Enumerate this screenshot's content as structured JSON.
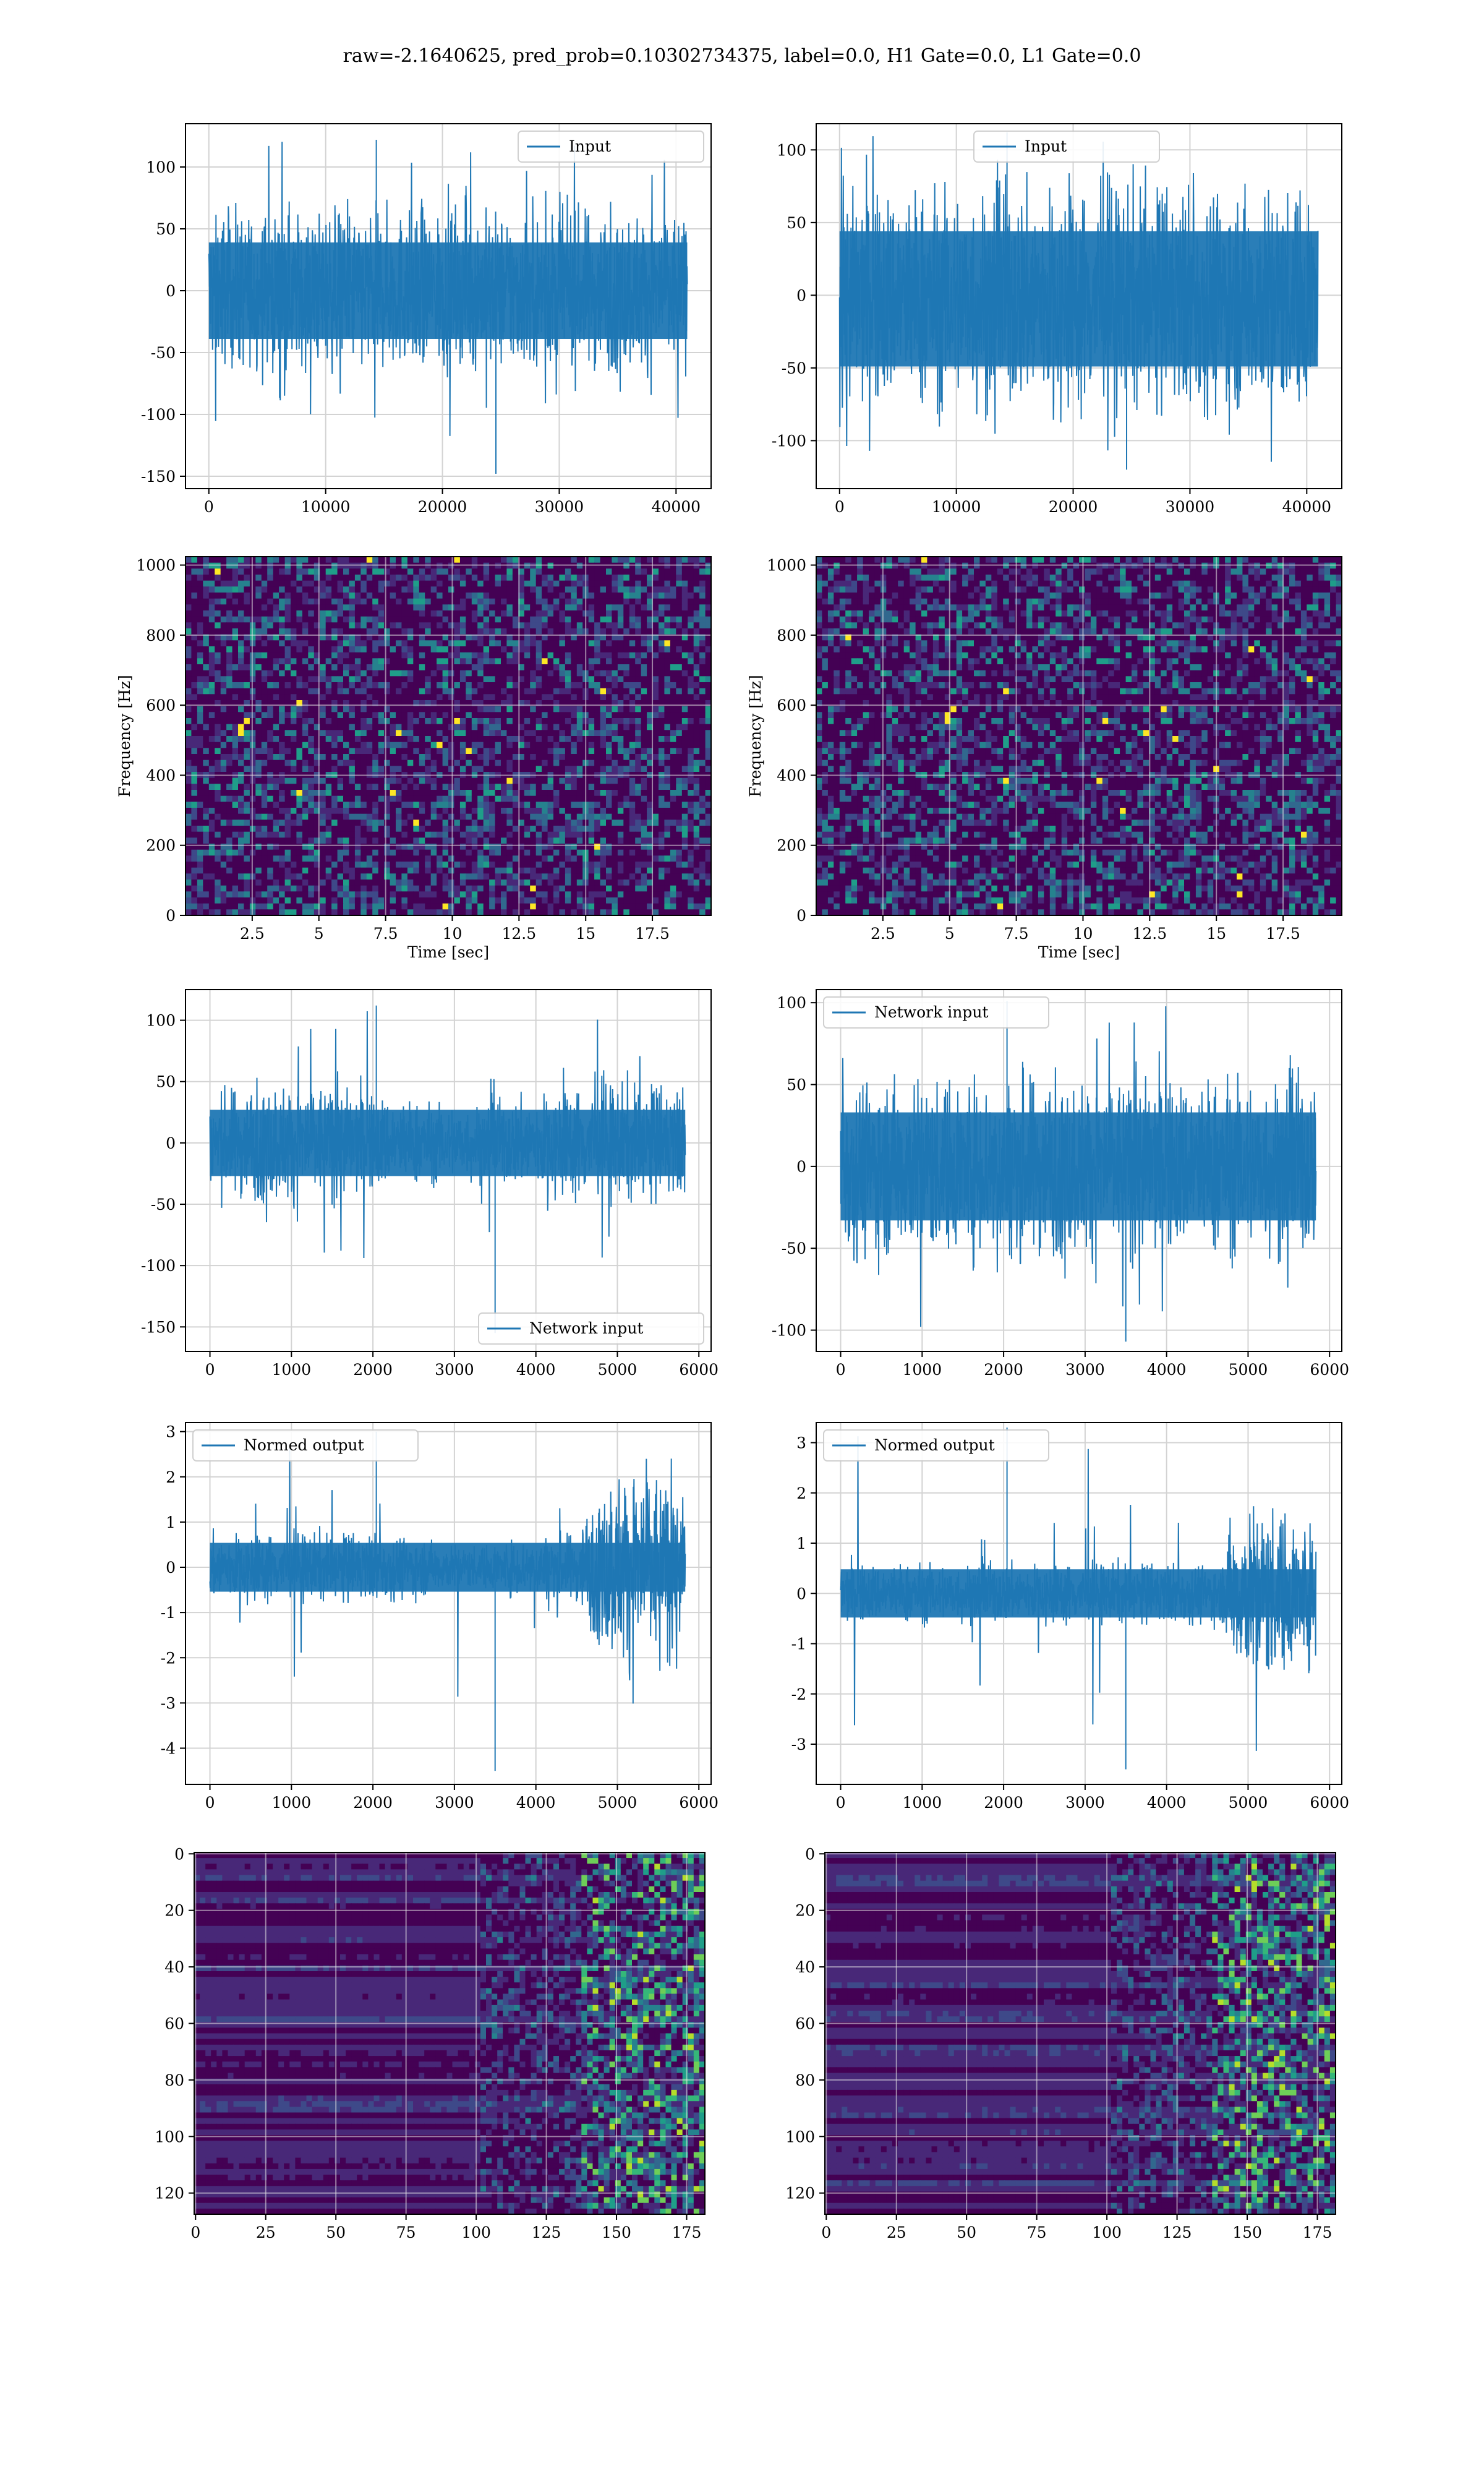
{
  "figure": {
    "title": "raw=-2.1640625, pred_prob=0.10302734375, label=0.0, H1 Gate=0.0, L1 Gate=0.0"
  },
  "colors": {
    "line": "#1f77b4",
    "grid": "#d3d3d3",
    "viridis": [
      "#440154",
      "#482878",
      "#3e4989",
      "#31688e",
      "#26828e",
      "#1f9e89",
      "#35b779",
      "#6ece58",
      "#b5de2b",
      "#fde725"
    ]
  },
  "chart_data": [
    {
      "id": "r1-left",
      "type": "line",
      "xlim": [
        -2000,
        43000
      ],
      "ylim": [
        -160,
        135
      ],
      "x_ticks": [
        0,
        10000,
        20000,
        30000,
        40000
      ],
      "y_ticks": [
        -150,
        -100,
        -50,
        0,
        50,
        100
      ],
      "legend": {
        "loc": "top-right",
        "label": "Input"
      },
      "grid": true,
      "series": {
        "name": "Input",
        "x_range": [
          0,
          40960
        ],
        "typical_band": [
          -65,
          65
        ],
        "min": -148,
        "max": 122
      }
    },
    {
      "id": "r1-right",
      "type": "line",
      "xlim": [
        -2000,
        43000
      ],
      "ylim": [
        -133,
        118
      ],
      "x_ticks": [
        0,
        10000,
        20000,
        30000,
        40000
      ],
      "y_ticks": [
        -100,
        -50,
        0,
        50,
        100
      ],
      "legend": {
        "loc": "top-center",
        "label": "Input"
      },
      "grid": true,
      "series": {
        "name": "Input",
        "x_range": [
          0,
          40960
        ],
        "typical_band": [
          -80,
          75
        ],
        "min": -120,
        "max": 112
      }
    },
    {
      "id": "r2-left",
      "type": "heatmap",
      "xlim": [
        0,
        19.7
      ],
      "ylim": [
        0,
        1024
      ],
      "x_ticks": [
        2.5,
        5.0,
        7.5,
        10.0,
        12.5,
        15.0,
        17.5
      ],
      "y_ticks": [
        0,
        200,
        400,
        600,
        800,
        1000
      ],
      "xlabel": "Time [sec]",
      "ylabel": "Frequency [Hz]",
      "grid": true,
      "colormap": "viridis"
    },
    {
      "id": "r2-right",
      "type": "heatmap",
      "xlim": [
        0,
        19.7
      ],
      "ylim": [
        0,
        1024
      ],
      "x_ticks": [
        2.5,
        5.0,
        7.5,
        10.0,
        12.5,
        15.0,
        17.5
      ],
      "y_ticks": [
        0,
        200,
        400,
        600,
        800,
        1000
      ],
      "xlabel": "Time [sec]",
      "ylabel": "Frequency [Hz]",
      "grid": true,
      "colormap": "viridis"
    },
    {
      "id": "r3-left",
      "type": "line",
      "xlim": [
        -300,
        6150
      ],
      "ylim": [
        -170,
        125
      ],
      "x_ticks": [
        0,
        1000,
        2000,
        3000,
        4000,
        5000,
        6000
      ],
      "y_ticks": [
        -150,
        -100,
        -50,
        0,
        50,
        100
      ],
      "legend": {
        "loc": "bottom-right",
        "label": "Network input"
      },
      "grid": true,
      "series": {
        "name": "Network input",
        "x_range": [
          0,
          5833
        ],
        "typical_band": [
          -45,
          45
        ],
        "min": -155,
        "max": 112
      }
    },
    {
      "id": "r3-right",
      "type": "line",
      "xlim": [
        -300,
        6150
      ],
      "ylim": [
        -113,
        108
      ],
      "x_ticks": [
        0,
        1000,
        2000,
        3000,
        4000,
        5000,
        6000
      ],
      "y_ticks": [
        -100,
        -50,
        0,
        50,
        100
      ],
      "legend": {
        "loc": "top-left",
        "label": "Network input"
      },
      "grid": true,
      "series": {
        "name": "Network input",
        "x_range": [
          0,
          5833
        ],
        "typical_band": [
          -55,
          55
        ],
        "min": -107,
        "max": 101
      }
    },
    {
      "id": "r4-left",
      "type": "line",
      "xlim": [
        -300,
        6150
      ],
      "ylim": [
        -4.8,
        3.2
      ],
      "x_ticks": [
        0,
        1000,
        2000,
        3000,
        4000,
        5000,
        6000
      ],
      "y_ticks": [
        -4,
        -3,
        -2,
        -1,
        0,
        1,
        2,
        3
      ],
      "legend": {
        "loc": "top-left",
        "label": "Normed output"
      },
      "grid": true,
      "series": {
        "name": "Normed output",
        "x_range": [
          0,
          5833
        ],
        "typical_band": [
          -0.9,
          0.9
        ],
        "min": -4.5,
        "max": 3.0
      }
    },
    {
      "id": "r4-right",
      "type": "line",
      "xlim": [
        -300,
        6150
      ],
      "ylim": [
        -3.8,
        3.4
      ],
      "x_ticks": [
        0,
        1000,
        2000,
        3000,
        4000,
        5000,
        6000
      ],
      "y_ticks": [
        -3,
        -2,
        -1,
        0,
        1,
        2,
        3
      ],
      "legend": {
        "loc": "top-left",
        "label": "Normed output"
      },
      "grid": true,
      "series": {
        "name": "Normed output",
        "x_range": [
          0,
          5833
        ],
        "typical_band": [
          -0.8,
          0.8
        ],
        "min": -3.5,
        "max": 3.3
      }
    },
    {
      "id": "r5-left",
      "type": "heatmap",
      "xlim": [
        -0.5,
        181.5
      ],
      "ylim": [
        127.5,
        -0.5
      ],
      "x_ticks": [
        0,
        25,
        50,
        75,
        100,
        125,
        150,
        175
      ],
      "y_ticks": [
        0,
        20,
        40,
        60,
        80,
        100,
        120
      ],
      "grid": true,
      "colormap": "viridis",
      "shape": [
        128,
        182
      ]
    },
    {
      "id": "r5-right",
      "type": "heatmap",
      "xlim": [
        -0.5,
        181.5
      ],
      "ylim": [
        127.5,
        -0.5
      ],
      "x_ticks": [
        0,
        25,
        50,
        75,
        100,
        125,
        150,
        175
      ],
      "y_ticks": [
        0,
        20,
        40,
        60,
        80,
        100,
        120
      ],
      "grid": true,
      "colormap": "viridis",
      "shape": [
        128,
        182
      ]
    }
  ]
}
